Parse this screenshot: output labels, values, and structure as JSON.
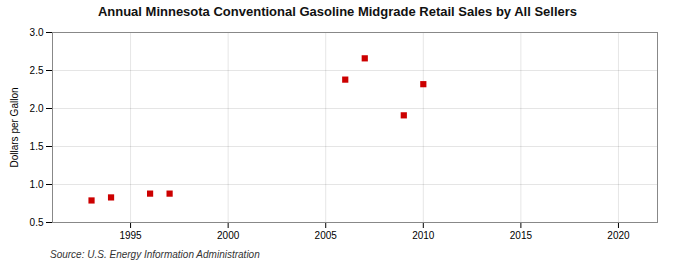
{
  "chart_data": {
    "type": "scatter",
    "title": "Annual Minnesota Conventional Gasoline Midgrade Retail Sales by All Sellers",
    "ylabel": "Dollars per Gallon",
    "annotations": [
      "Source: U.S. Energy Information Administration"
    ],
    "x": [
      1993,
      1994,
      1996,
      1997,
      2006,
      2007,
      2009,
      2010
    ],
    "values": [
      0.79,
      0.83,
      0.88,
      0.88,
      2.38,
      2.66,
      1.91,
      2.32
    ],
    "color": "#cc0000",
    "marker": "square",
    "xlim": [
      1991,
      2022
    ],
    "xticks": [
      1995,
      2000,
      2005,
      2010,
      2015,
      2020
    ],
    "ylim": [
      0.5,
      3.0
    ],
    "yticks": [
      0.5,
      {
        "value": 1,
        "label": "1.0"
      },
      1.5,
      {
        "value": 2,
        "label": "2.0"
      },
      2.5,
      {
        "value": 3,
        "label": "3.0"
      }
    ],
    "grid": true
  }
}
